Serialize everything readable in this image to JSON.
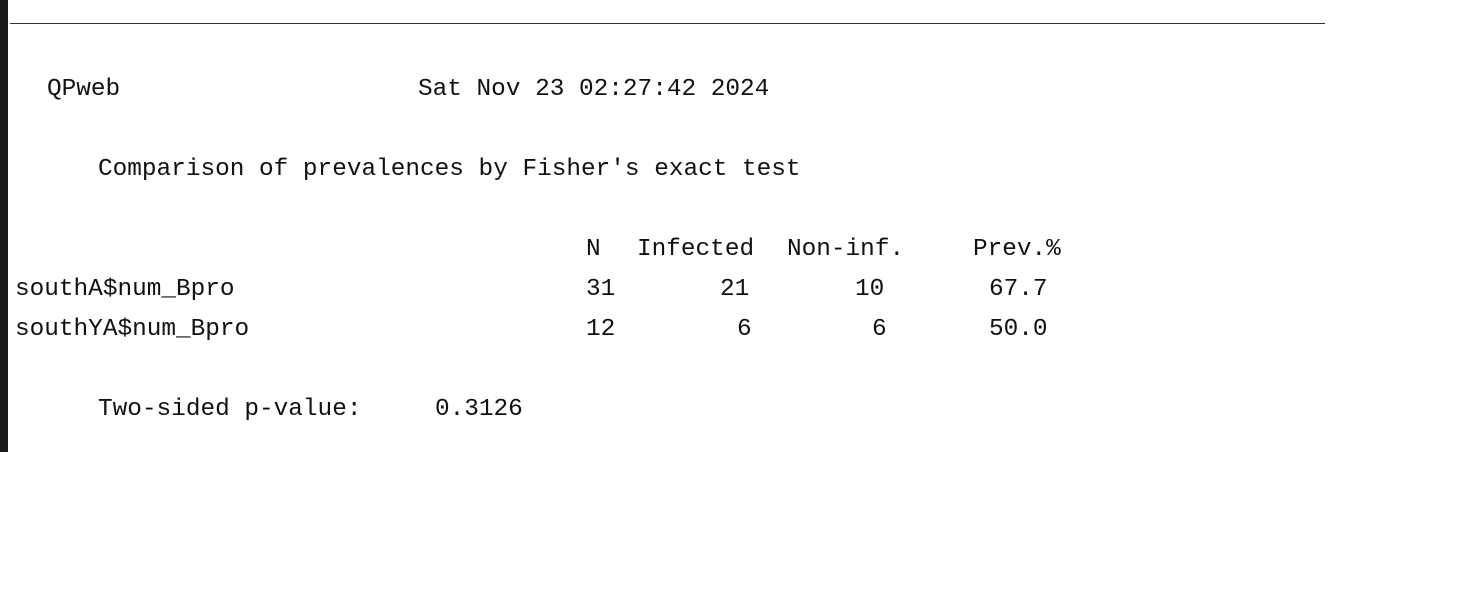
{
  "header": {
    "program": "QPweb",
    "timestamp": "Sat Nov 23 02:27:42 2024"
  },
  "report": {
    "title": "Comparison of prevalences by Fisher's exact test",
    "columns": [
      "N",
      "Infected",
      "Non-inf.",
      "Prev.%"
    ],
    "rows": [
      {
        "label": "southA$num_Bpro",
        "n": "31",
        "infected": "21",
        "noninf": "10",
        "prev": "67.7"
      },
      {
        "label": "southYA$num_Bpro",
        "n": "12",
        "infected": "6",
        "noninf": "6",
        "prev": "50.0"
      }
    ],
    "pvalue_label": "Two-sided p-value:",
    "pvalue": "0.3126"
  }
}
